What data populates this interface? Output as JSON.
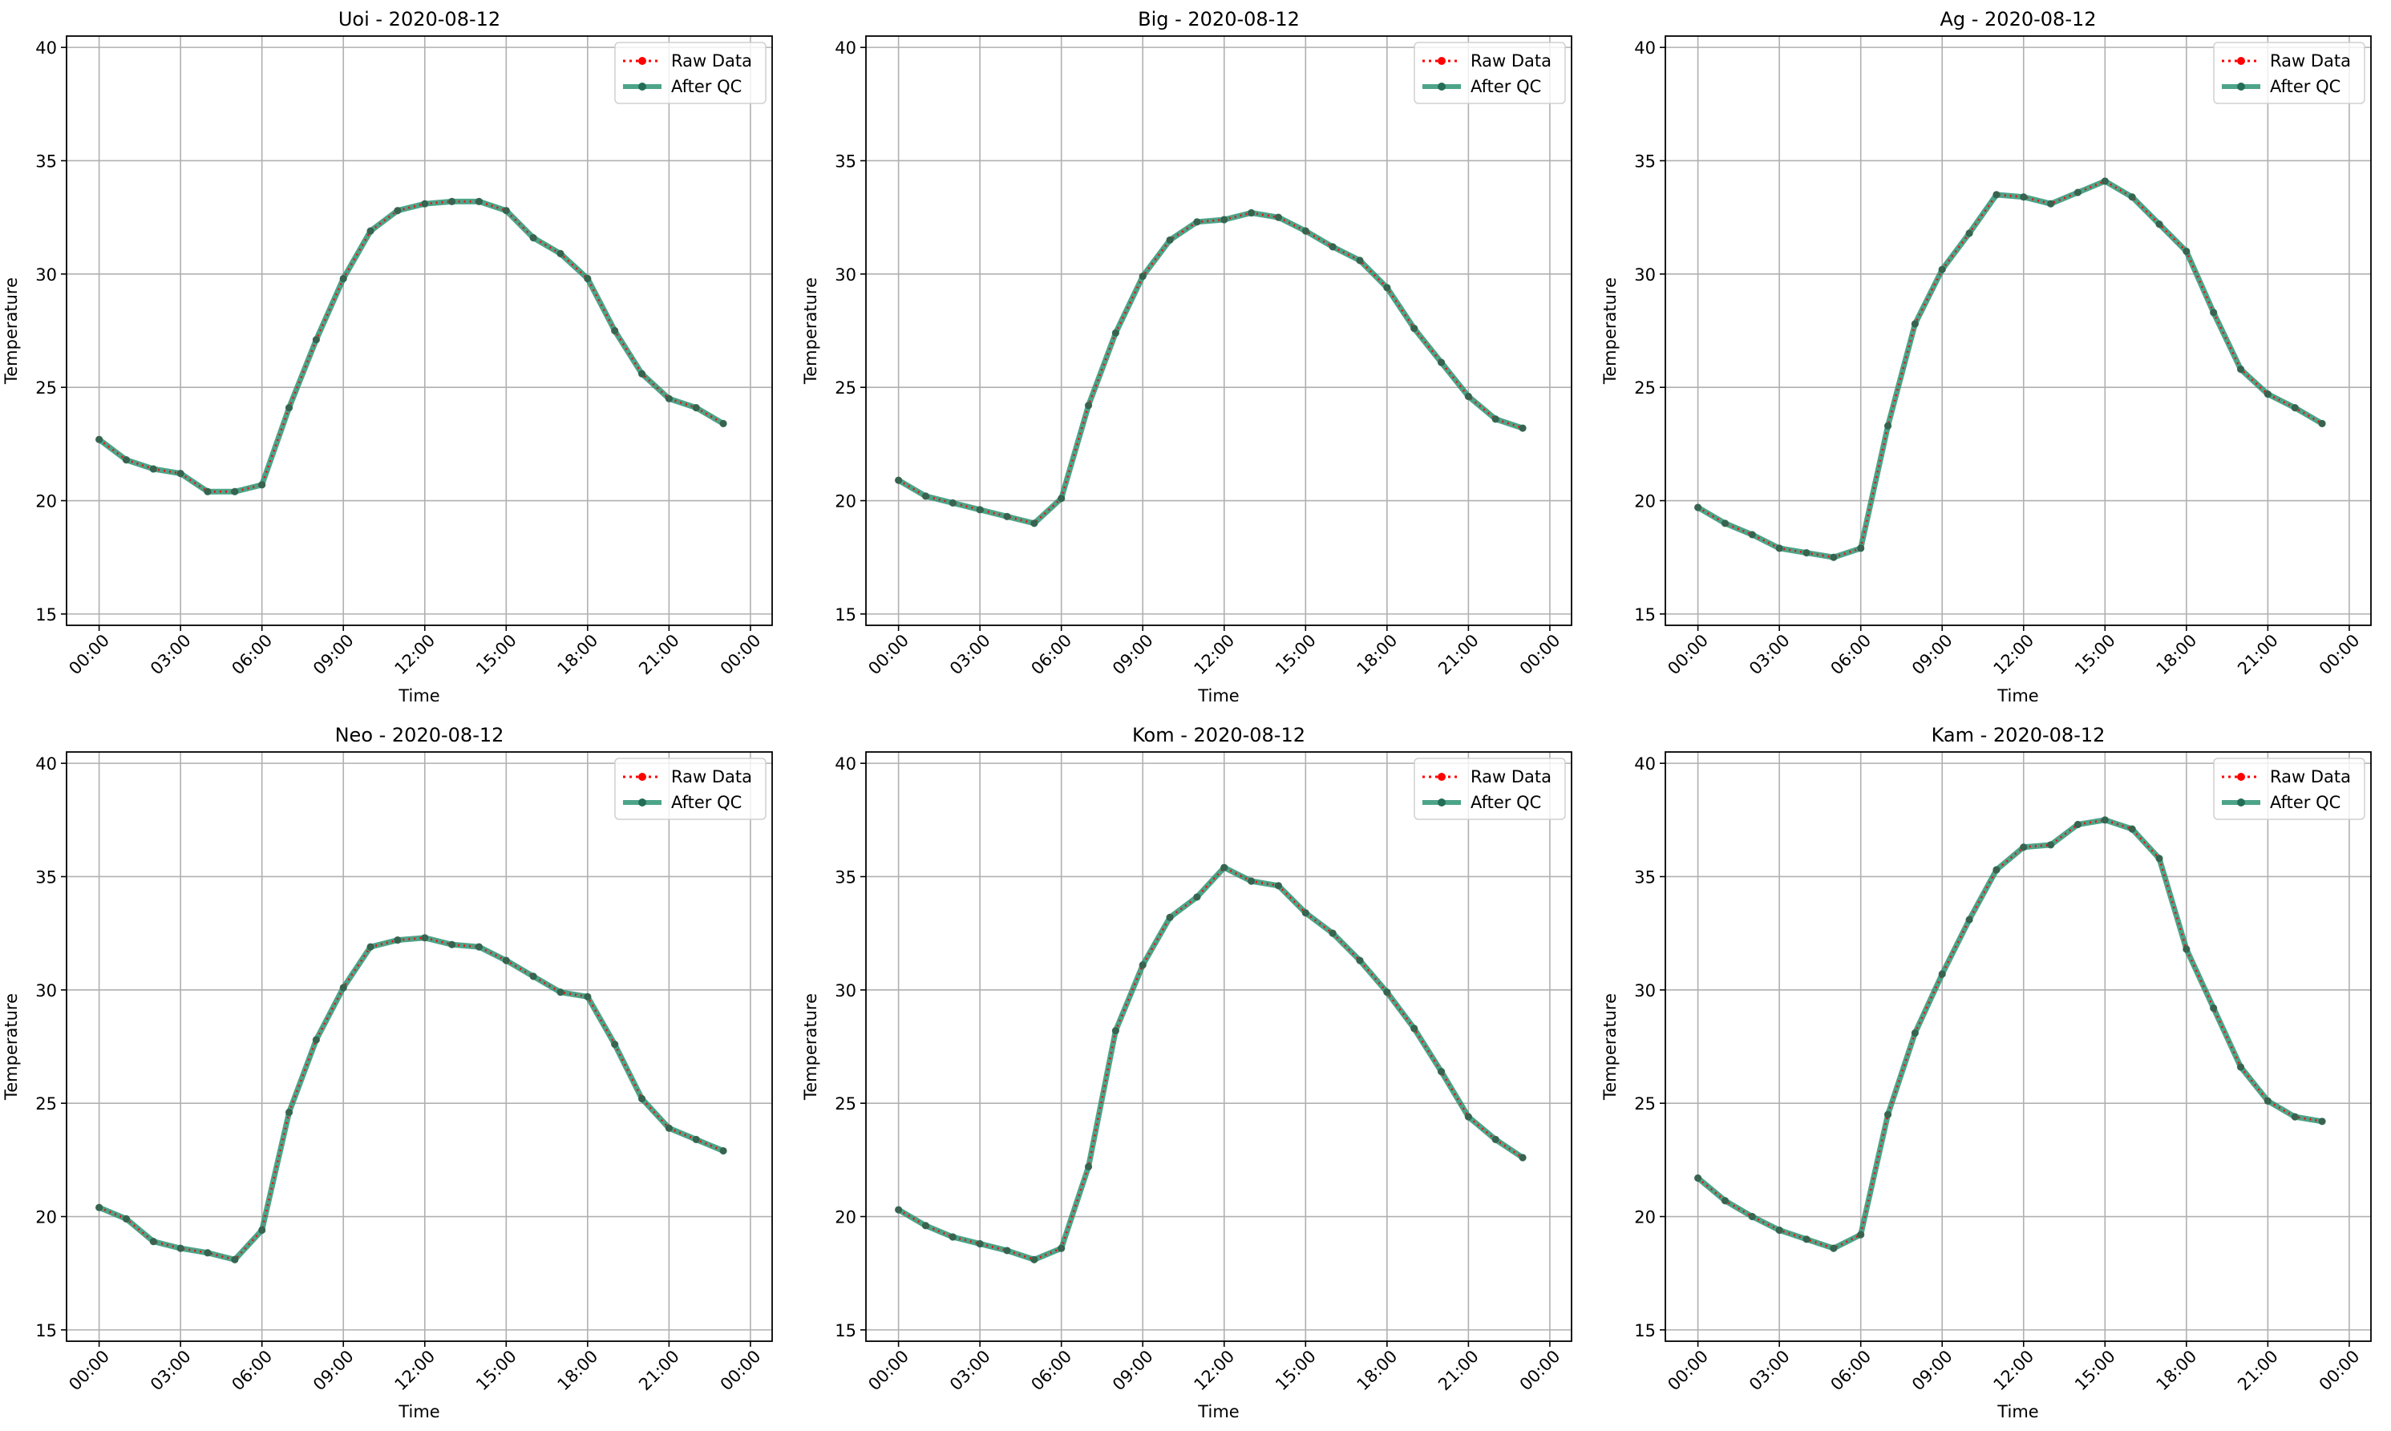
{
  "chart_data": [
    {
      "type": "line",
      "title": "Uoi - 2020-08-12",
      "xlabel": "Time",
      "ylabel": "Temperature",
      "ylim": [
        14.5,
        40.5
      ],
      "yticks": [
        15,
        20,
        25,
        30,
        35,
        40
      ],
      "xticks": [
        "00:00",
        "03:00",
        "06:00",
        "09:00",
        "12:00",
        "15:00",
        "18:00",
        "21:00",
        "00:00"
      ],
      "x_hours": [
        0,
        1,
        2,
        3,
        4,
        5,
        6,
        7,
        8,
        9,
        10,
        11,
        12,
        13,
        14,
        15,
        16,
        17,
        18,
        19,
        20,
        21,
        22,
        23
      ],
      "grid": true,
      "legend_position": "top-right",
      "series": [
        {
          "name": "Raw Data",
          "color": "#ff0000",
          "values": [
            22.7,
            21.8,
            21.4,
            21.2,
            20.4,
            20.4,
            20.7,
            24.1,
            27.1,
            29.8,
            31.9,
            32.8,
            33.1,
            33.2,
            33.2,
            32.8,
            31.6,
            30.9,
            29.8,
            27.5,
            25.6,
            24.5,
            24.1,
            23.4
          ]
        },
        {
          "name": "After QC",
          "color": "#2e9474",
          "values": [
            22.7,
            21.8,
            21.4,
            21.2,
            20.4,
            20.4,
            20.7,
            24.1,
            27.1,
            29.8,
            31.9,
            32.8,
            33.1,
            33.2,
            33.2,
            32.8,
            31.6,
            30.9,
            29.8,
            27.5,
            25.6,
            24.5,
            24.1,
            23.4
          ]
        }
      ]
    },
    {
      "type": "line",
      "title": "Big - 2020-08-12",
      "xlabel": "Time",
      "ylabel": "Temperature",
      "ylim": [
        14.5,
        40.5
      ],
      "yticks": [
        15,
        20,
        25,
        30,
        35,
        40
      ],
      "xticks": [
        "00:00",
        "03:00",
        "06:00",
        "09:00",
        "12:00",
        "15:00",
        "18:00",
        "21:00",
        "00:00"
      ],
      "x_hours": [
        0,
        1,
        2,
        3,
        4,
        5,
        6,
        7,
        8,
        9,
        10,
        11,
        12,
        13,
        14,
        15,
        16,
        17,
        18,
        19,
        20,
        21,
        22,
        23
      ],
      "grid": true,
      "legend_position": "top-right",
      "series": [
        {
          "name": "Raw Data",
          "color": "#ff0000",
          "values": [
            20.9,
            20.2,
            19.9,
            19.6,
            19.3,
            19.0,
            20.1,
            24.2,
            27.4,
            29.9,
            31.5,
            32.3,
            32.4,
            32.7,
            32.5,
            31.9,
            31.2,
            30.6,
            29.4,
            27.6,
            26.1,
            24.6,
            23.6,
            23.2
          ]
        },
        {
          "name": "After QC",
          "color": "#2e9474",
          "values": [
            20.9,
            20.2,
            19.9,
            19.6,
            19.3,
            19.0,
            20.1,
            24.2,
            27.4,
            29.9,
            31.5,
            32.3,
            32.4,
            32.7,
            32.5,
            31.9,
            31.2,
            30.6,
            29.4,
            27.6,
            26.1,
            24.6,
            23.6,
            23.2
          ]
        }
      ]
    },
    {
      "type": "line",
      "title": "Ag - 2020-08-12",
      "xlabel": "Time",
      "ylabel": "Temperature",
      "ylim": [
        14.5,
        40.5
      ],
      "yticks": [
        15,
        20,
        25,
        30,
        35,
        40
      ],
      "xticks": [
        "00:00",
        "03:00",
        "06:00",
        "09:00",
        "12:00",
        "15:00",
        "18:00",
        "21:00",
        "00:00"
      ],
      "x_hours": [
        0,
        1,
        2,
        3,
        4,
        5,
        6,
        7,
        8,
        9,
        10,
        11,
        12,
        13,
        14,
        15,
        16,
        17,
        18,
        19,
        20,
        21,
        22,
        23
      ],
      "grid": true,
      "legend_position": "top-right",
      "series": [
        {
          "name": "Raw Data",
          "color": "#ff0000",
          "values": [
            19.7,
            19.0,
            18.5,
            17.9,
            17.7,
            17.5,
            17.9,
            23.3,
            27.8,
            30.2,
            31.8,
            33.5,
            33.4,
            33.1,
            33.6,
            34.1,
            33.4,
            32.2,
            31.0,
            28.3,
            25.8,
            24.7,
            24.1,
            23.4
          ]
        },
        {
          "name": "After QC",
          "color": "#2e9474",
          "values": [
            19.7,
            19.0,
            18.5,
            17.9,
            17.7,
            17.5,
            17.9,
            23.3,
            27.8,
            30.2,
            31.8,
            33.5,
            33.4,
            33.1,
            33.6,
            34.1,
            33.4,
            32.2,
            31.0,
            28.3,
            25.8,
            24.7,
            24.1,
            23.4
          ]
        }
      ]
    },
    {
      "type": "line",
      "title": "Neo - 2020-08-12",
      "xlabel": "Time",
      "ylabel": "Temperature",
      "ylim": [
        14.5,
        40.5
      ],
      "yticks": [
        15,
        20,
        25,
        30,
        35,
        40
      ],
      "xticks": [
        "00:00",
        "03:00",
        "06:00",
        "09:00",
        "12:00",
        "15:00",
        "18:00",
        "21:00",
        "00:00"
      ],
      "x_hours": [
        0,
        1,
        2,
        3,
        4,
        5,
        6,
        7,
        8,
        9,
        10,
        11,
        12,
        13,
        14,
        15,
        16,
        17,
        18,
        19,
        20,
        21,
        22,
        23
      ],
      "grid": true,
      "legend_position": "top-right",
      "series": [
        {
          "name": "Raw Data",
          "color": "#ff0000",
          "values": [
            20.4,
            19.9,
            18.9,
            18.6,
            18.4,
            18.1,
            19.4,
            24.6,
            27.8,
            30.1,
            31.9,
            32.2,
            32.3,
            32.0,
            31.9,
            31.3,
            30.6,
            29.9,
            29.7,
            27.6,
            25.2,
            23.9,
            23.4,
            22.9
          ]
        },
        {
          "name": "After QC",
          "color": "#2e9474",
          "values": [
            20.4,
            19.9,
            18.9,
            18.6,
            18.4,
            18.1,
            19.4,
            24.6,
            27.8,
            30.1,
            31.9,
            32.2,
            32.3,
            32.0,
            31.9,
            31.3,
            30.6,
            29.9,
            29.7,
            27.6,
            25.2,
            23.9,
            23.4,
            22.9
          ]
        }
      ]
    },
    {
      "type": "line",
      "title": "Kom - 2020-08-12",
      "xlabel": "Time",
      "ylabel": "Temperature",
      "ylim": [
        14.5,
        40.5
      ],
      "yticks": [
        15,
        20,
        25,
        30,
        35,
        40
      ],
      "xticks": [
        "00:00",
        "03:00",
        "06:00",
        "09:00",
        "12:00",
        "15:00",
        "18:00",
        "21:00",
        "00:00"
      ],
      "x_hours": [
        0,
        1,
        2,
        3,
        4,
        5,
        6,
        7,
        8,
        9,
        10,
        11,
        12,
        13,
        14,
        15,
        16,
        17,
        18,
        19,
        20,
        21,
        22,
        23
      ],
      "grid": true,
      "legend_position": "top-right",
      "series": [
        {
          "name": "Raw Data",
          "color": "#ff0000",
          "values": [
            20.3,
            19.6,
            19.1,
            18.8,
            18.5,
            18.1,
            18.6,
            22.2,
            28.2,
            31.1,
            33.2,
            34.1,
            35.4,
            34.8,
            34.6,
            33.4,
            32.5,
            31.3,
            29.9,
            28.3,
            26.4,
            24.4,
            23.4,
            22.6
          ]
        },
        {
          "name": "After QC",
          "color": "#2e9474",
          "values": [
            20.3,
            19.6,
            19.1,
            18.8,
            18.5,
            18.1,
            18.6,
            22.2,
            28.2,
            31.1,
            33.2,
            34.1,
            35.4,
            34.8,
            34.6,
            33.4,
            32.5,
            31.3,
            29.9,
            28.3,
            26.4,
            24.4,
            23.4,
            22.6
          ]
        }
      ]
    },
    {
      "type": "line",
      "title": "Kam - 2020-08-12",
      "xlabel": "Time",
      "ylabel": "Temperature",
      "ylim": [
        14.5,
        40.5
      ],
      "yticks": [
        15,
        20,
        25,
        30,
        35,
        40
      ],
      "xticks": [
        "00:00",
        "03:00",
        "06:00",
        "09:00",
        "12:00",
        "15:00",
        "18:00",
        "21:00",
        "00:00"
      ],
      "x_hours": [
        0,
        1,
        2,
        3,
        4,
        5,
        6,
        7,
        8,
        9,
        10,
        11,
        12,
        13,
        14,
        15,
        16,
        17,
        18,
        19,
        20,
        21,
        22,
        23
      ],
      "grid": true,
      "legend_position": "top-right",
      "series": [
        {
          "name": "Raw Data",
          "color": "#ff0000",
          "values": [
            21.7,
            20.7,
            20.0,
            19.4,
            19.0,
            18.6,
            19.2,
            24.5,
            28.1,
            30.7,
            33.1,
            35.3,
            36.3,
            36.4,
            37.3,
            37.5,
            37.1,
            35.8,
            31.8,
            29.2,
            26.6,
            25.1,
            24.4,
            24.2
          ]
        },
        {
          "name": "After QC",
          "color": "#2e9474",
          "values": [
            21.7,
            20.7,
            20.0,
            19.4,
            19.0,
            18.6,
            19.2,
            24.5,
            28.1,
            30.7,
            33.1,
            35.3,
            36.3,
            36.4,
            37.3,
            37.5,
            37.1,
            35.8,
            31.8,
            29.2,
            26.6,
            25.1,
            24.4,
            24.2
          ]
        }
      ]
    }
  ]
}
